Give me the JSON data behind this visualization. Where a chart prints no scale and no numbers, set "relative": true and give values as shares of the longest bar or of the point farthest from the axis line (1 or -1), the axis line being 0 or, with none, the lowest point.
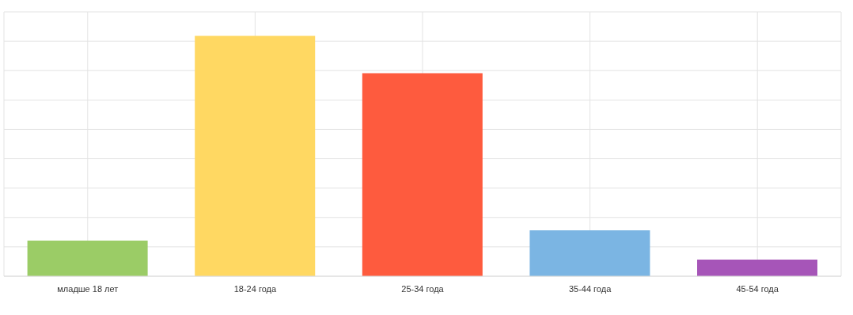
{
  "chart_data": {
    "type": "bar",
    "relative": true,
    "grid": true,
    "categories": [
      "младше 18 лет",
      "18-24 года",
      "25-34 года",
      "35-44 года",
      "45-54 года"
    ],
    "values": [
      0.148,
      1,
      0.845,
      0.191,
      0.069
    ],
    "colors": [
      "#9bcc66",
      "#ffd862",
      "#fe5b3e",
      "#7bb5e3",
      "#a655b8"
    ]
  }
}
